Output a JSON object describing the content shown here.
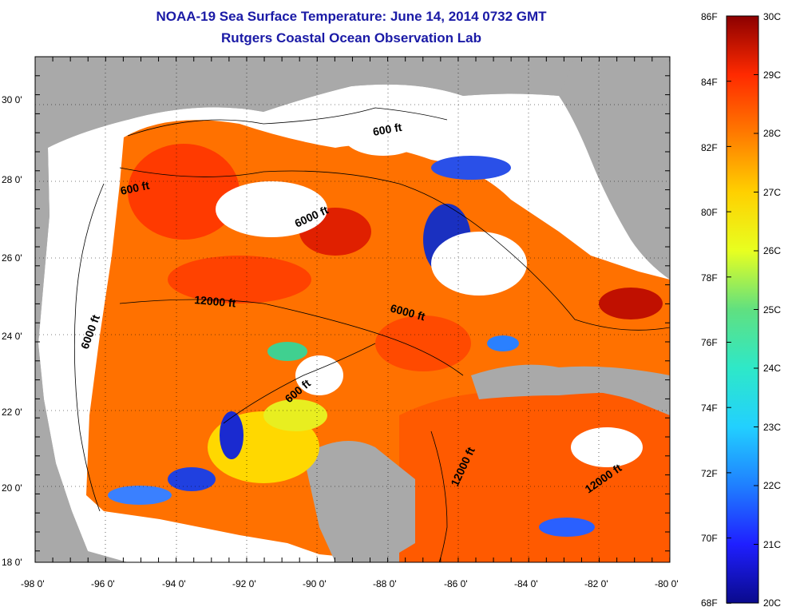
{
  "title": {
    "line1": "NOAA-19 Sea Surface Temperature:  June 14, 2014 0732 GMT",
    "line2": "Rutgers Coastal Ocean Observation Lab"
  },
  "map": {
    "lat_labels": [
      "30 0'",
      "28 0'",
      "26 0'",
      "24 0'",
      "22 0'",
      "20 0'",
      "18 0'"
    ],
    "lon_labels": [
      "-98 0'",
      "-96 0'",
      "-94 0'",
      "-92 0'",
      "-90 0'",
      "-88 0'",
      "-86 0'",
      "-84 0'",
      "-82 0'",
      "-80 0'"
    ],
    "contours": {
      "c600_ne": "600 ft",
      "c600_w": "600 ft",
      "c600_mid": "600 ft",
      "c6000_n": "6000 ft",
      "c6000_w": "6000 ft",
      "c6000_e": "6000 ft",
      "c12000_w": "12000 ft",
      "c12000_se1": "12000 ft",
      "c12000_se2": "12000 ft"
    }
  },
  "colorbar": {
    "f_labels": [
      "86F",
      "84F",
      "82F",
      "80F",
      "78F",
      "76F",
      "74F",
      "72F",
      "70F",
      "68F"
    ],
    "c_labels": [
      "30C",
      "29C",
      "28C",
      "27C",
      "26C",
      "25C",
      "24C",
      "23C",
      "22C",
      "21C",
      "20C"
    ],
    "colors": {
      "c20": "#0a0a8c",
      "c21": "#1f1fff",
      "c22": "#1f7fff",
      "c23": "#22d0ff",
      "c24": "#2ee8c8",
      "c25": "#60e080",
      "c26": "#e8ff20",
      "c27": "#ffd000",
      "c28": "#ff7a00",
      "c29": "#ff2a00",
      "c30": "#8c0000"
    }
  }
}
